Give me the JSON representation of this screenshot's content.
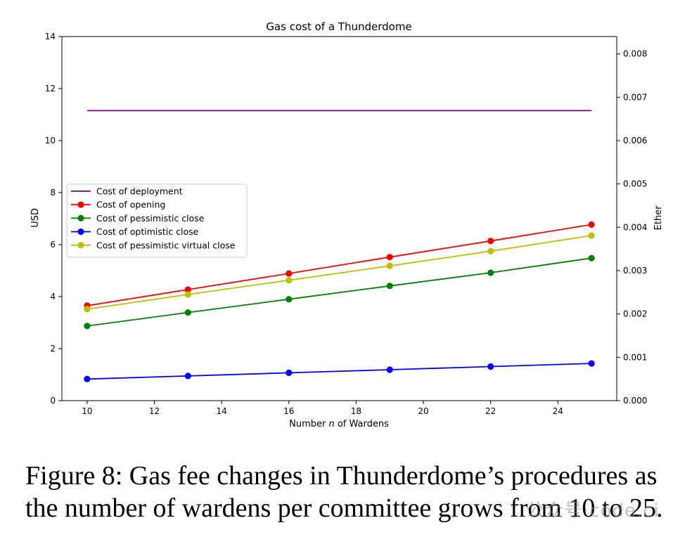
{
  "chart_data": {
    "type": "line",
    "title": "Gas cost of a Thunderdome",
    "xlabel_parts": [
      "Number ",
      "n",
      " of Wardens"
    ],
    "ylabel": "USD",
    "ylabel_right": "Ether",
    "xlim": [
      9.25,
      25.75
    ],
    "ylim": [
      0,
      14
    ],
    "ylim_right": [
      0,
      0.0084
    ],
    "xticks": [
      10,
      12,
      14,
      16,
      18,
      20,
      22,
      24
    ],
    "yticks": [
      0,
      2,
      4,
      6,
      8,
      10,
      12,
      14
    ],
    "yticks_right": [
      "0.000",
      "0.001",
      "0.002",
      "0.003",
      "0.004",
      "0.005",
      "0.006",
      "0.007",
      "0.008"
    ],
    "x": [
      10,
      13,
      16,
      19,
      22,
      25
    ],
    "legend_position": "center-left",
    "series": [
      {
        "name": "Cost of deployment",
        "color": "#800080",
        "markers": false,
        "values": [
          11.15,
          11.15,
          11.15,
          11.15,
          11.15,
          11.15
        ]
      },
      {
        "name": "Cost of opening",
        "color": "#ff0000",
        "markers": true,
        "values": [
          3.65,
          4.27,
          4.89,
          5.52,
          6.14,
          6.77
        ]
      },
      {
        "name": "Cost of pessimistic close",
        "color": "#008000",
        "markers": true,
        "values": [
          2.87,
          3.39,
          3.9,
          4.41,
          4.92,
          5.48
        ]
      },
      {
        "name": "Cost of optimistic close",
        "color": "#0000ff",
        "markers": true,
        "values": [
          0.83,
          0.95,
          1.07,
          1.19,
          1.31,
          1.43
        ]
      },
      {
        "name": "Cost of pessimistic virtual close",
        "color": "#bfbf00",
        "markers": true,
        "values": [
          3.52,
          4.08,
          4.63,
          5.18,
          5.75,
          6.35
        ]
      }
    ]
  },
  "caption": "Figure 8: Gas fee changes in Thunderdome’s procedures as the number of wardens per committee grows from 10 to 25.",
  "watermark": "公众号·code.ci"
}
